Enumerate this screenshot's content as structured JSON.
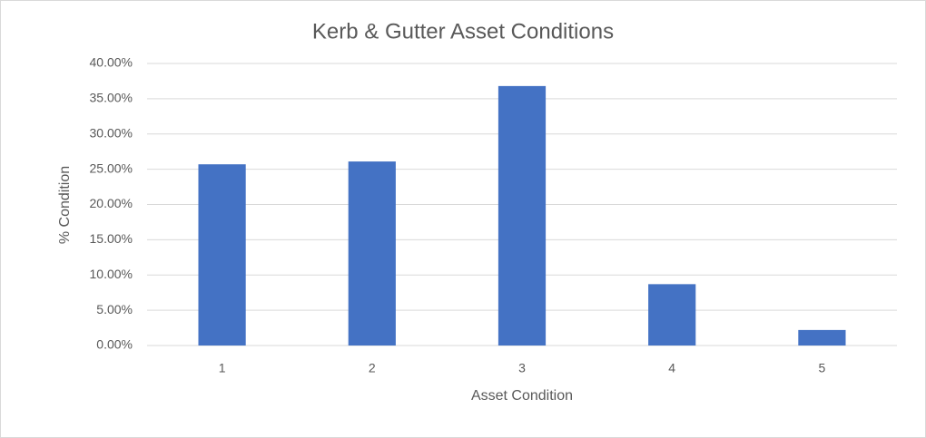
{
  "chart_data": {
    "type": "bar",
    "title": "Kerb & Gutter Asset Conditions",
    "x_label": "Asset Condition",
    "y_label": "% Condition",
    "categories": [
      "1",
      "2",
      "3",
      "4",
      "5"
    ],
    "values": [
      25.7,
      26.1,
      36.8,
      8.7,
      2.2
    ],
    "color": "#4472c4",
    "ylim": [
      0,
      40
    ],
    "yticks": [
      {
        "value": 0,
        "label": "0.00%"
      },
      {
        "value": 5,
        "label": "5.00%"
      },
      {
        "value": 10,
        "label": "10.00%"
      },
      {
        "value": 15,
        "label": "15.00%"
      },
      {
        "value": 20,
        "label": "20.00%"
      },
      {
        "value": 25,
        "label": "25.00%"
      },
      {
        "value": 30,
        "label": "30.00%"
      },
      {
        "value": 35,
        "label": "35.00%"
      },
      {
        "value": 40,
        "label": "40.00%"
      }
    ],
    "grid": true
  }
}
